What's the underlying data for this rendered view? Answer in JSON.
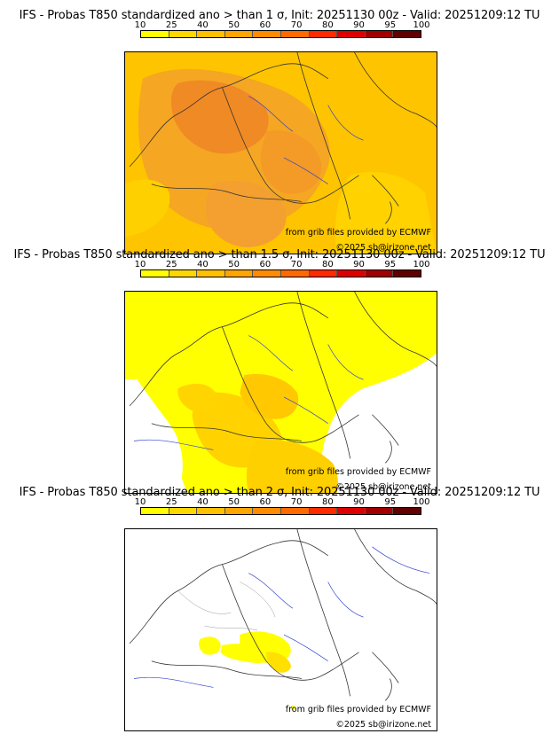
{
  "panels": [
    {
      "title": "IFS - Probas T850  standardized ano > than 1 σ, Init: 20251130 00z - Valid: 20251209:12 TU"
    },
    {
      "title": "IFS - Probas T850  standardized ano > than 1.5 σ, Init: 20251130 00z - Valid: 20251209:12 TU"
    },
    {
      "title": "IFS - Probas T850  standardized ano > than 2 σ, Init: 20251130 00z - Valid: 20251209:12 TU"
    }
  ],
  "colorbar": {
    "ticks": [
      "10",
      "25",
      "40",
      "50",
      "60",
      "70",
      "80",
      "90",
      "95",
      "100"
    ],
    "colors": [
      "#ffff00",
      "#ffd700",
      "#ffc000",
      "#ffa500",
      "#ff8c00",
      "#ff6a00",
      "#ff2a00",
      "#dd0000",
      "#a00000",
      "#600000"
    ]
  },
  "credits": {
    "source": "from grib files provided by ECMWF",
    "copyright": "©2025 sb@irizone.net"
  }
}
